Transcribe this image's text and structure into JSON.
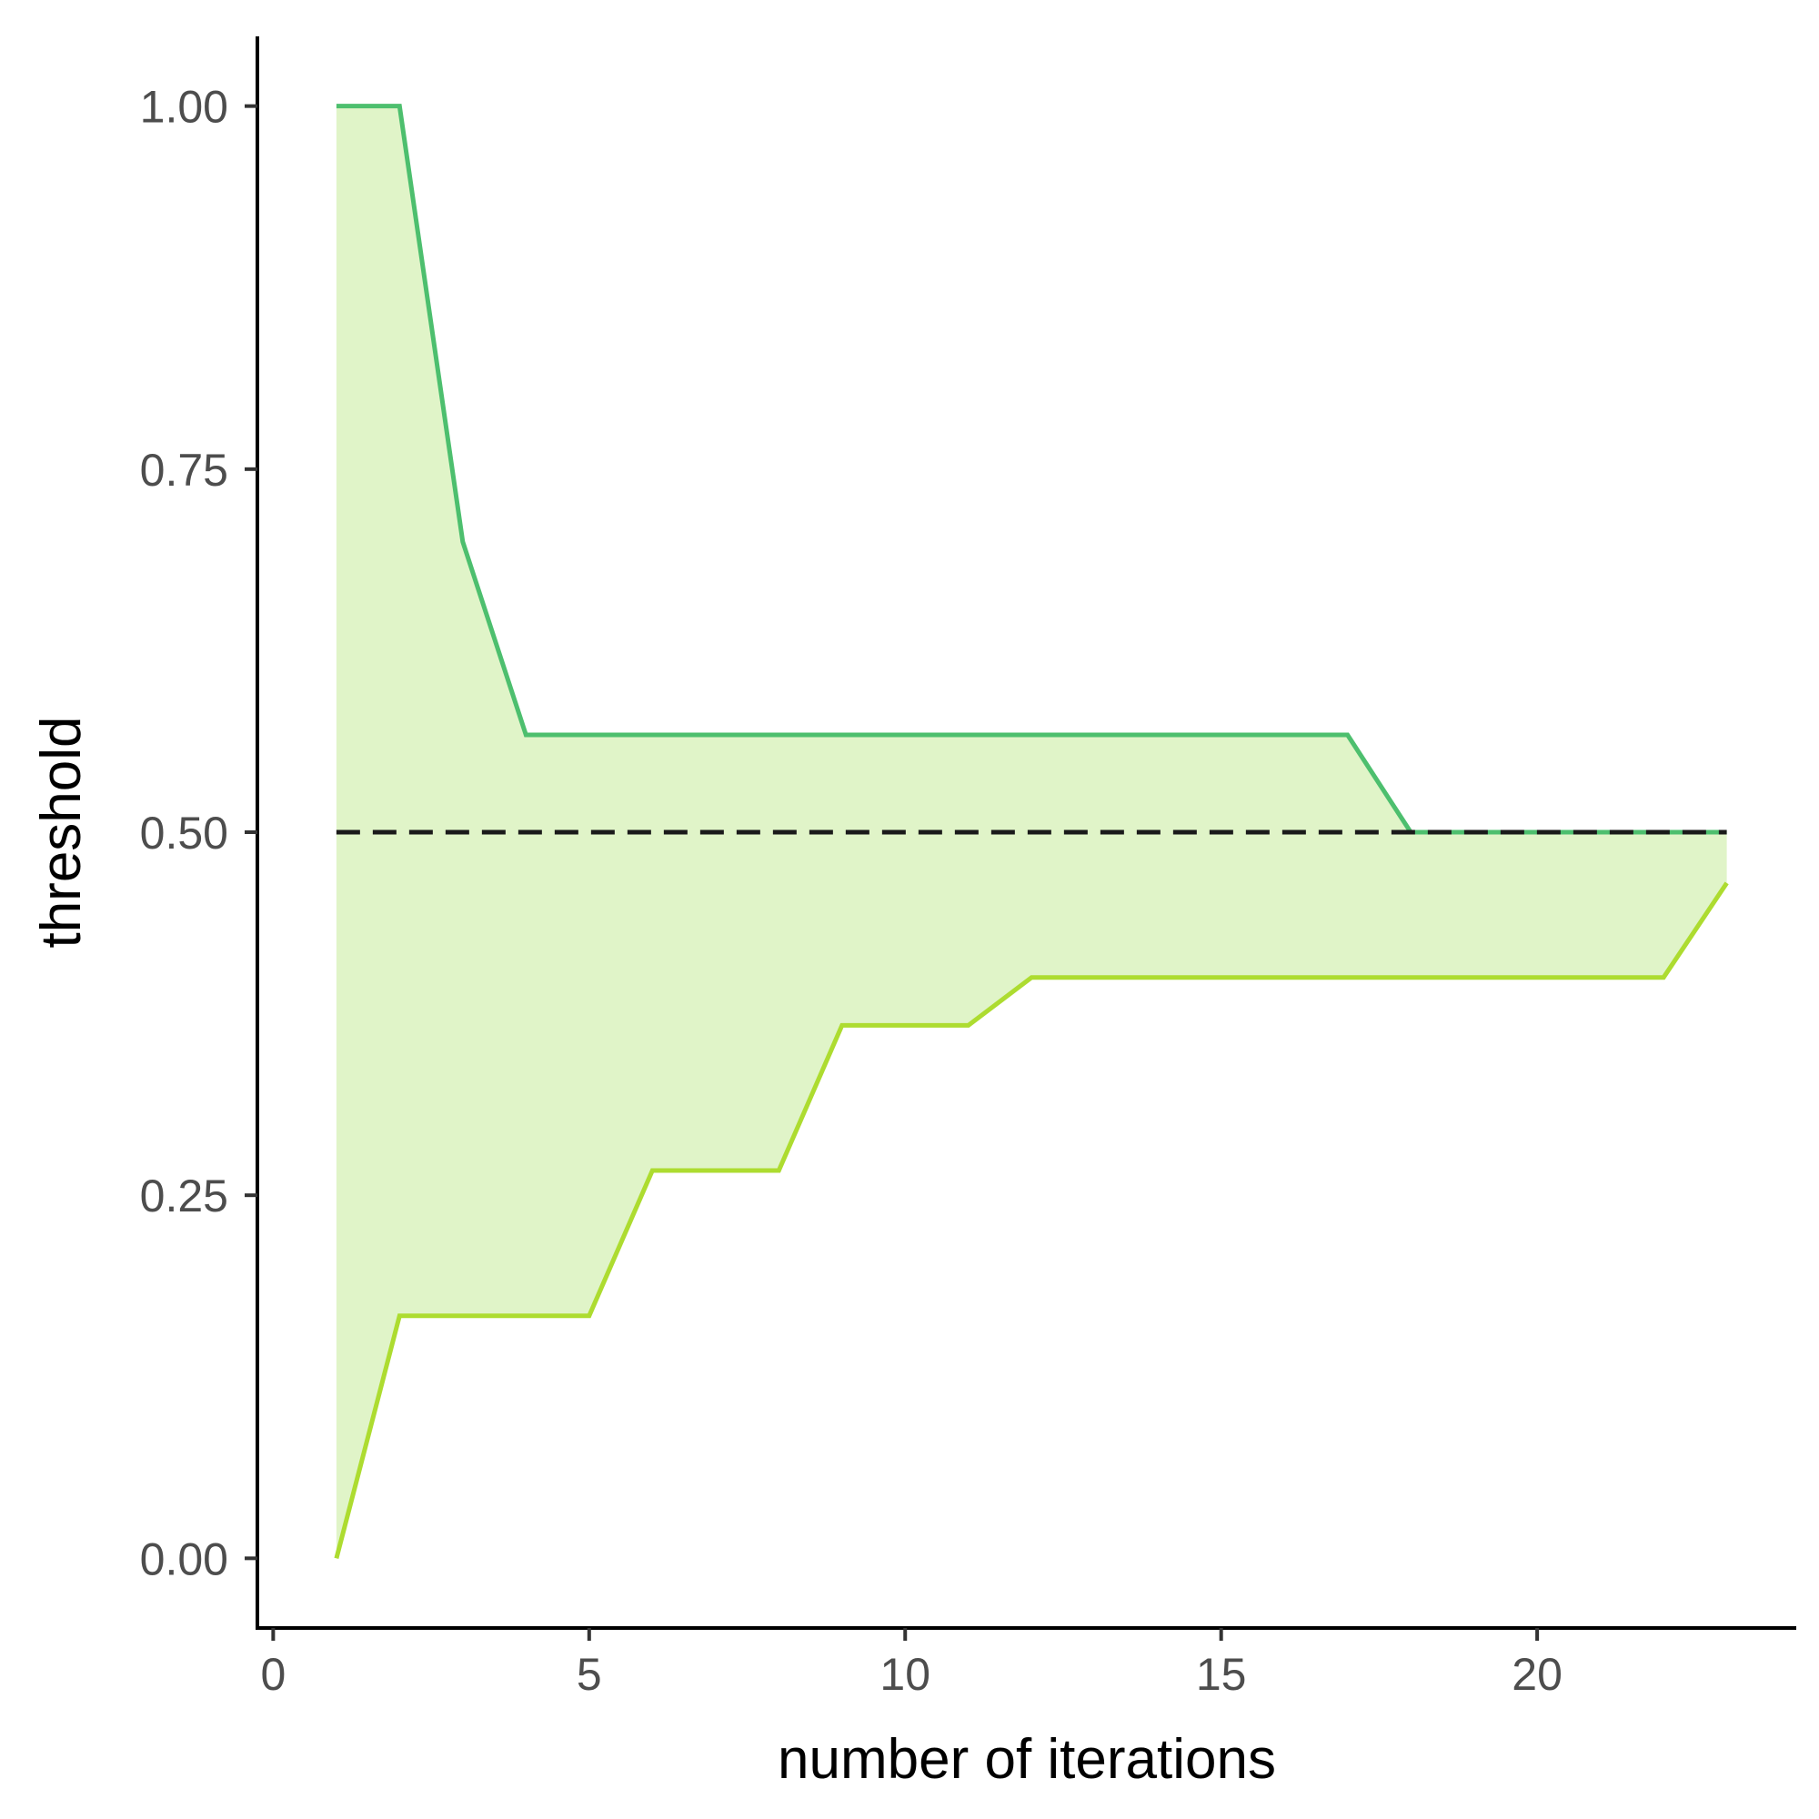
{
  "chart_data": {
    "type": "line",
    "title": "",
    "xlabel": "number of iterations",
    "ylabel": "threshold",
    "xlim": [
      -0.25,
      24.1
    ],
    "ylim": [
      -0.048,
      1.048
    ],
    "x_ticks": [
      0,
      5,
      10,
      15,
      20
    ],
    "x_tick_labels": [
      "0",
      "5",
      "10",
      "15",
      "20"
    ],
    "y_ticks": [
      0,
      0.25,
      0.5,
      0.75,
      1
    ],
    "y_tick_labels": [
      "0.00",
      "0.25",
      "0.50",
      "0.75",
      "1.00"
    ],
    "grid": false,
    "legend": "none",
    "x": [
      1,
      2,
      3,
      4,
      5,
      6,
      7,
      8,
      9,
      10,
      11,
      12,
      13,
      14,
      15,
      16,
      17,
      18,
      19,
      20,
      21,
      22,
      23
    ],
    "series": [
      {
        "role": "upper",
        "color": "#4dbf6e",
        "values": [
          1.0,
          1.0,
          0.7,
          0.567,
          0.567,
          0.567,
          0.567,
          0.567,
          0.567,
          0.567,
          0.567,
          0.567,
          0.567,
          0.567,
          0.567,
          0.567,
          0.567,
          0.5,
          0.5,
          0.5,
          0.5,
          0.5,
          0.5
        ]
      },
      {
        "role": "lower",
        "color": "#addc30",
        "values": [
          0.0,
          0.167,
          0.167,
          0.167,
          0.167,
          0.267,
          0.267,
          0.267,
          0.367,
          0.367,
          0.367,
          0.4,
          0.4,
          0.4,
          0.4,
          0.4,
          0.4,
          0.4,
          0.4,
          0.4,
          0.4,
          0.4,
          0.465
        ]
      }
    ],
    "band_fill": "#e0f4c8",
    "reference_line": {
      "y": 0.5,
      "x_range": [
        1,
        23
      ],
      "style": "dashed",
      "color": "#1a1a1a"
    }
  }
}
